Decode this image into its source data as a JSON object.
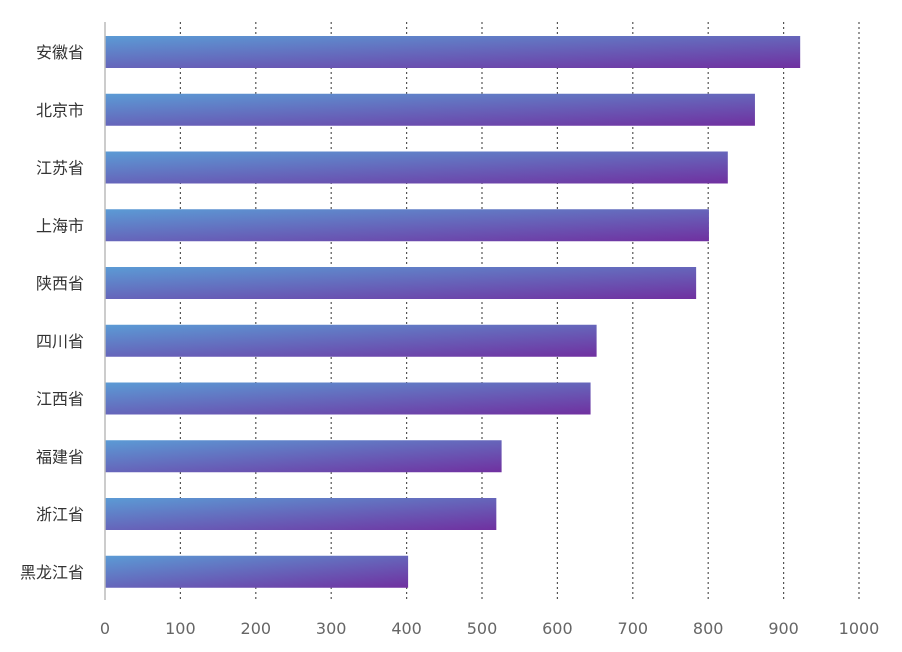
{
  "chart_data": {
    "type": "bar",
    "orientation": "horizontal",
    "categories": [
      "安徽省",
      "北京市",
      "江苏省",
      "上海市",
      "陕西省",
      "四川省",
      "江西省",
      "福建省",
      "浙江省",
      "黑龙江省"
    ],
    "values": [
      922,
      862,
      826,
      801,
      784,
      652,
      644,
      526,
      519,
      402
    ],
    "xlim": [
      0,
      1000
    ],
    "x_ticks": [
      "0",
      "100",
      "200",
      "300",
      "400",
      "500",
      "600",
      "700",
      "800",
      "900",
      "1000"
    ],
    "grid": "vertical-dotted",
    "title": "",
    "xlabel": "",
    "ylabel": "",
    "colors": {
      "bar_gradient_start": "#5B9BD5",
      "bar_gradient_end": "#7030A0",
      "grid": "#555555",
      "axis": "#BBBBBB"
    }
  }
}
